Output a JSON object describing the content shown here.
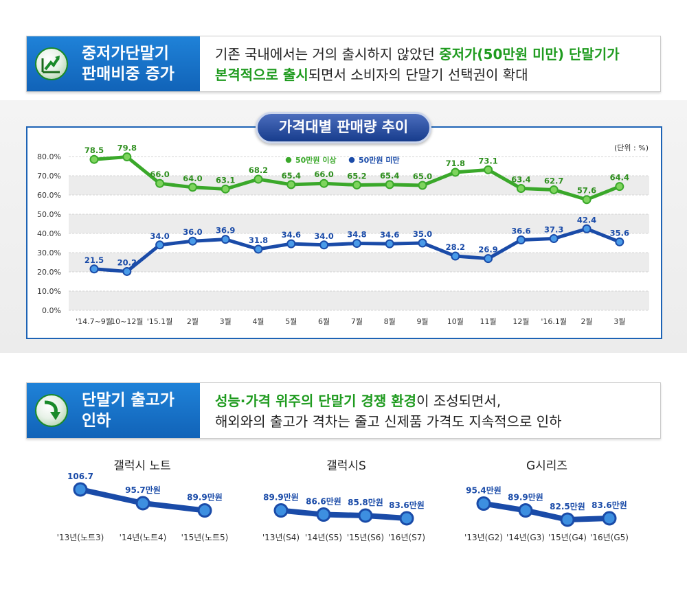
{
  "section1": {
    "title_line1": "중저가단말기",
    "title_line2": "판매비중 증가",
    "text_part1": "기존 국내에서는 거의 출시하지 않았던 ",
    "text_highlight1": "중저가(50만원 미만) 단말기가",
    "text_highlight2": "본격적으로 출시",
    "text_part2": "되면서 소비자의 단말기 선택권이 확대"
  },
  "section2": {
    "title_line1": "단말기 출고가",
    "title_line2": "인하",
    "text_highlight1": "성능·가격 위주의 단말기 경쟁 환경",
    "text_part1": "이 조성되면서,",
    "text_line2": "해외와의 출고가 격차는 줄고 신제품 가격도 지속적으로 인하"
  },
  "colors": {
    "green": "#1f9b1f",
    "blue": "#1a4ba8",
    "header_blue": "#1470c8"
  },
  "chart_data": [
    {
      "type": "line",
      "title": "가격대별 판매량 추이",
      "unit_label": "(단위 : %)",
      "categories": [
        "'14.7~9월",
        "10~12월",
        "'15.1월",
        "2월",
        "3월",
        "4월",
        "5월",
        "6월",
        "7월",
        "8월",
        "9월",
        "10월",
        "11월",
        "12월",
        "'16.1월",
        "2월",
        "3월"
      ],
      "series": [
        {
          "name": "50만원 이상",
          "color": "#3aa82a",
          "values": [
            78.5,
            79.8,
            66.0,
            64.0,
            63.1,
            68.2,
            65.4,
            66.0,
            65.2,
            65.4,
            65.0,
            71.8,
            73.1,
            63.4,
            62.7,
            57.6,
            64.4
          ]
        },
        {
          "name": "50만원 미만",
          "color": "#1a4ba8",
          "values": [
            21.5,
            20.2,
            34.0,
            36.0,
            36.9,
            31.8,
            34.6,
            34.0,
            34.8,
            34.6,
            35.0,
            28.2,
            26.9,
            36.6,
            37.3,
            42.4,
            35.6
          ]
        }
      ],
      "ylim": [
        0,
        80
      ],
      "yticks": [
        "0.0%",
        "10.0%",
        "20.0%",
        "30.0%",
        "40.0%",
        "50.0%",
        "60.0%",
        "70.0%",
        "80.0%"
      ],
      "grid": true,
      "legend": "top-center"
    },
    {
      "type": "line",
      "title": "갤럭시 노트",
      "categories": [
        "'13년(노트3)",
        "'14년(노트4)",
        "'15년(노트5)"
      ],
      "values": [
        106.7,
        95.7,
        89.9
      ],
      "labels": [
        "106.7",
        "95.7만원",
        "89.9만원"
      ]
    },
    {
      "type": "line",
      "title": "갤럭시S",
      "categories": [
        "'13년(S4)",
        "'14년(S5)",
        "'15년(S6)",
        "'16년(S7)"
      ],
      "values": [
        89.9,
        86.6,
        85.8,
        83.6
      ],
      "labels": [
        "89.9만원",
        "86.6만원",
        "85.8만원",
        "83.6만원"
      ]
    },
    {
      "type": "line",
      "title": "G시리즈",
      "categories": [
        "'13년(G2)",
        "'14년(G3)",
        "'15년(G4)",
        "'16년(G5)"
      ],
      "values": [
        95.4,
        89.9,
        82.5,
        83.6
      ],
      "labels": [
        "95.4만원",
        "89.9만원",
        "82.5만원",
        "83.6만원"
      ]
    }
  ]
}
